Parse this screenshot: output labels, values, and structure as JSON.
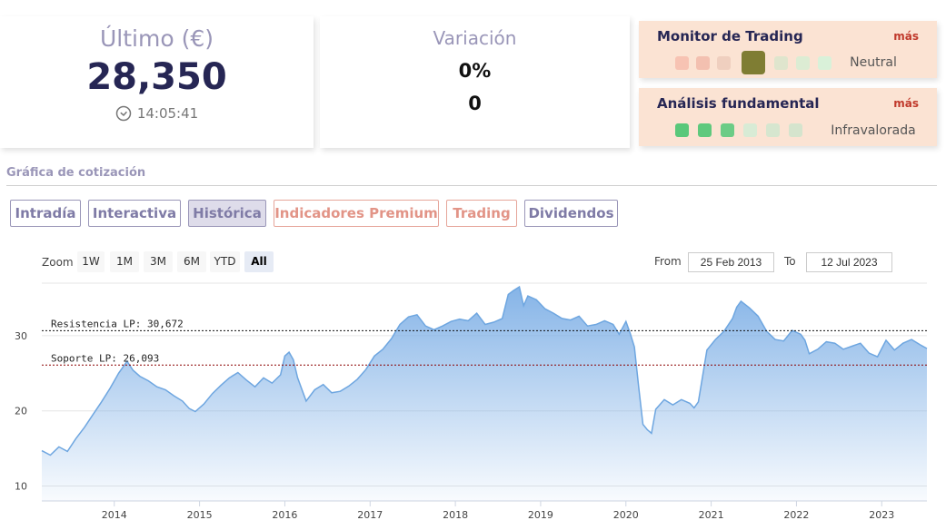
{
  "last": {
    "title": "Último (€)",
    "value": "28,350",
    "time": "14:05:41"
  },
  "variation": {
    "title": "Variación",
    "percent": "0%",
    "value": "0"
  },
  "trading_monitor": {
    "title": "Monitor de Trading",
    "more": "más",
    "state": "Neutral",
    "dots": [
      "#f7c3b3",
      "#f3c0b0",
      "#efcfbf",
      "#7f7d33",
      "#dfe5cd",
      "#dcecd3",
      "#d9f1d9"
    ]
  },
  "fundamental": {
    "title": "Análisis fundamental",
    "more": "más",
    "state": "Infravalorada",
    "dots": [
      "#59c87a",
      "#5fc97d",
      "#6ccc86",
      "#d8ebd5",
      "#d6e6cf",
      "#d5e4cd"
    ]
  },
  "section_title": "Gráfica de cotización",
  "tabs": [
    {
      "label": "Intradía",
      "premium": false,
      "active": false
    },
    {
      "label": "Interactiva",
      "premium": false,
      "active": false
    },
    {
      "label": "Histórica",
      "premium": false,
      "active": true
    },
    {
      "label": "Indicadores Premium",
      "premium": true,
      "active": false
    },
    {
      "label": "Trading",
      "premium": true,
      "active": false
    },
    {
      "label": "Dividendos",
      "premium": false,
      "active": false
    }
  ],
  "zoom": {
    "label": "Zoom",
    "options": [
      "1W",
      "1M",
      "3M",
      "6M",
      "YTD",
      "All"
    ],
    "selected": "All"
  },
  "range": {
    "from_label": "From",
    "from": "25 Feb 2013",
    "to_label": "To",
    "to": "12 Jul 2023"
  },
  "chart_data": {
    "type": "area",
    "xlim": [
      2013.15,
      2023.53
    ],
    "ylim": [
      8,
      37
    ],
    "yticks": [
      10,
      20,
      30
    ],
    "xticks": [
      "2014",
      "2015",
      "2016",
      "2017",
      "2018",
      "2019",
      "2020",
      "2021",
      "2022",
      "2023"
    ],
    "lines": [
      {
        "label": "Resistencia LP: 30,672",
        "value": 30.672,
        "color": "#111111"
      },
      {
        "label": "Soporte LP: 26,093",
        "value": 26.093,
        "color": "#8b0000"
      }
    ],
    "series": [
      {
        "color": "#7fb0e6",
        "x": [
          2013.15,
          2013.25,
          2013.35,
          2013.45,
          2013.55,
          2013.65,
          2013.75,
          2013.85,
          2013.95,
          2014.05,
          2014.15,
          2014.22,
          2014.3,
          2014.4,
          2014.5,
          2014.6,
          2014.7,
          2014.8,
          2014.88,
          2014.95,
          2015.05,
          2015.15,
          2015.25,
          2015.35,
          2015.45,
          2015.55,
          2015.65,
          2015.75,
          2015.85,
          2015.95,
          2016.0,
          2016.05,
          2016.1,
          2016.15,
          2016.25,
          2016.35,
          2016.45,
          2016.55,
          2016.65,
          2016.75,
          2016.85,
          2016.95,
          2017.05,
          2017.15,
          2017.25,
          2017.35,
          2017.45,
          2017.55,
          2017.65,
          2017.75,
          2017.85,
          2017.95,
          2018.05,
          2018.15,
          2018.25,
          2018.35,
          2018.45,
          2018.55,
          2018.62,
          2018.68,
          2018.75,
          2018.8,
          2018.85,
          2018.95,
          2019.05,
          2019.15,
          2019.25,
          2019.35,
          2019.45,
          2019.55,
          2019.65,
          2019.75,
          2019.85,
          2019.92,
          2020.0,
          2020.05,
          2020.1,
          2020.15,
          2020.2,
          2020.25,
          2020.3,
          2020.35,
          2020.45,
          2020.55,
          2020.65,
          2020.75,
          2020.8,
          2020.85,
          2020.95,
          2021.05,
          2021.15,
          2021.25,
          2021.3,
          2021.35,
          2021.45,
          2021.55,
          2021.65,
          2021.75,
          2021.85,
          2021.95,
          2022.05,
          2022.1,
          2022.15,
          2022.25,
          2022.35,
          2022.45,
          2022.55,
          2022.65,
          2022.75,
          2022.85,
          2022.95,
          2023.05,
          2023.15,
          2023.25,
          2023.35,
          2023.45,
          2023.53
        ],
        "y": [
          14.7,
          14.1,
          15.2,
          14.6,
          16.3,
          17.8,
          19.5,
          21.2,
          23.0,
          25.0,
          26.6,
          25.4,
          24.6,
          24.0,
          23.2,
          22.8,
          22.0,
          21.3,
          20.3,
          19.9,
          20.9,
          22.3,
          23.4,
          24.4,
          25.1,
          24.1,
          23.2,
          24.4,
          23.7,
          24.8,
          27.3,
          27.8,
          26.8,
          24.4,
          21.3,
          22.8,
          23.5,
          22.4,
          22.6,
          23.3,
          24.2,
          25.5,
          27.3,
          28.2,
          29.6,
          31.5,
          32.5,
          32.8,
          31.3,
          30.8,
          31.3,
          31.9,
          32.2,
          32.0,
          33.0,
          31.5,
          31.8,
          32.3,
          35.5,
          36.0,
          36.5,
          34.0,
          35.3,
          34.8,
          33.6,
          33.0,
          32.3,
          32.1,
          32.6,
          31.3,
          31.5,
          32.0,
          31.5,
          30.2,
          31.9,
          30.3,
          28.5,
          23.2,
          18.2,
          17.5,
          17.0,
          20.2,
          21.5,
          20.8,
          21.5,
          21.0,
          20.4,
          21.2,
          28.1,
          29.5,
          30.6,
          32.3,
          33.8,
          34.6,
          33.7,
          32.6,
          30.6,
          29.5,
          29.3,
          30.7,
          30.2,
          29.4,
          27.6,
          28.2,
          29.2,
          29.0,
          28.2,
          28.6,
          29.0,
          27.7,
          27.2,
          29.4,
          28.1,
          29.0,
          29.5,
          28.8,
          28.3
        ]
      }
    ]
  }
}
